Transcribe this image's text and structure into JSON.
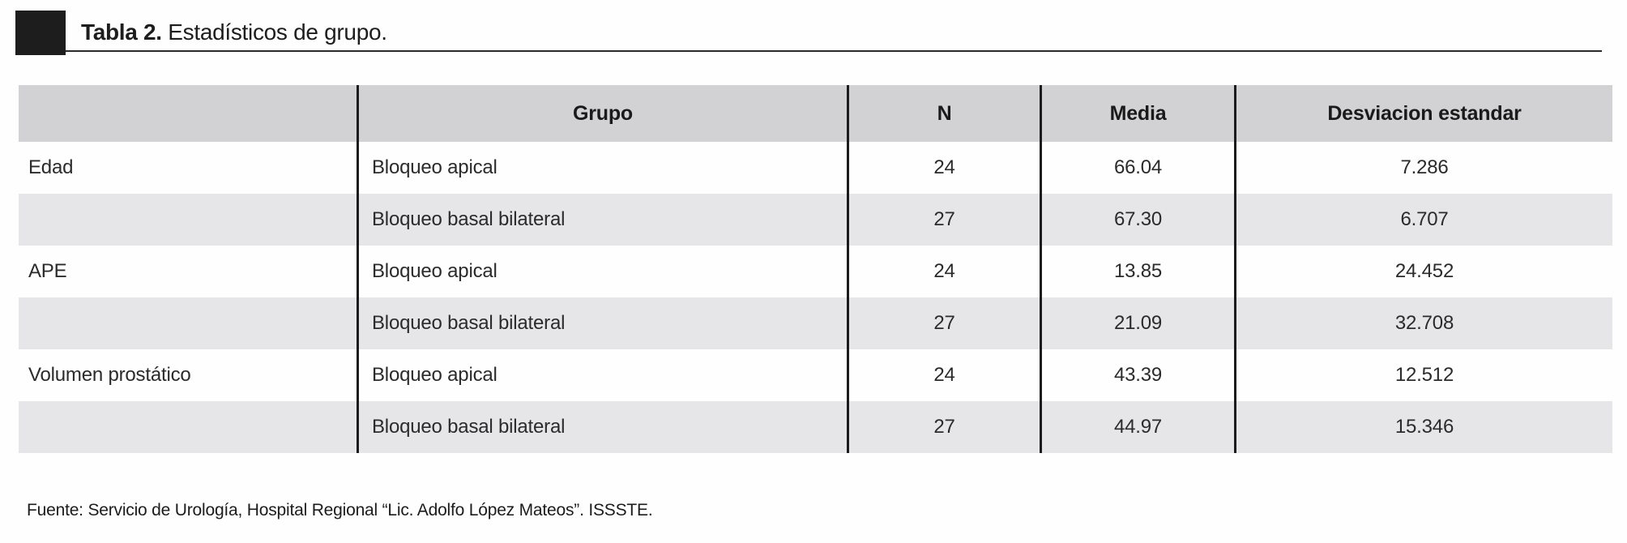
{
  "title": {
    "label": "Tabla 2.",
    "caption": " Estadísticos de grupo."
  },
  "table": {
    "headers": [
      "",
      "Grupo",
      "N",
      "Media",
      "Desviacion estandar"
    ],
    "rows": [
      {
        "variable": "Edad",
        "grupo": "Bloqueo apical",
        "n": "24",
        "media": "66.04",
        "sd": "7.286"
      },
      {
        "variable": "",
        "grupo": "Bloqueo basal bilateral",
        "n": "27",
        "media": "67.30",
        "sd": "6.707"
      },
      {
        "variable": "APE",
        "grupo": "Bloqueo apical",
        "n": "24",
        "media": "13.85",
        "sd": "24.452"
      },
      {
        "variable": "",
        "grupo": "Bloqueo basal bilateral",
        "n": "27",
        "media": "21.09",
        "sd": "32.708"
      },
      {
        "variable": "Volumen prostático",
        "grupo": "Bloqueo apical",
        "n": "24",
        "media": "43.39",
        "sd": "12.512"
      },
      {
        "variable": "",
        "grupo": "Bloqueo basal bilateral",
        "n": "27",
        "media": "44.97",
        "sd": "15.346"
      }
    ]
  },
  "footer": {
    "source": "Fuente: Servicio de Urología, Hospital Regional “Lic. Adolfo López Mateos”. ISSSTE."
  },
  "colors": {
    "header_bg": "#d2d2d4",
    "alt_row_bg": "#e6e6e8",
    "rule_black": "#1c1c1c",
    "text": "#2b2b2b"
  }
}
